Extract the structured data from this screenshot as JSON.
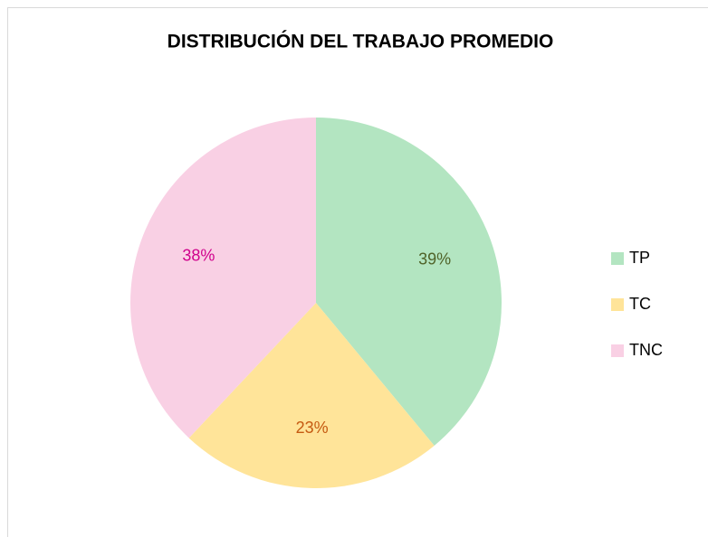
{
  "chart_data": {
    "type": "pie",
    "title": "DISTRIBUCIÓN DEL TRABAJO PROMEDIO",
    "categories": [
      "TP",
      "TC",
      "TNC"
    ],
    "values": [
      39,
      23,
      38
    ],
    "value_labels": [
      "39%",
      "23%",
      "38%"
    ],
    "colors": [
      "#b3e5c1",
      "#ffe499",
      "#f9d0e4"
    ],
    "label_colors": [
      "#4f6228",
      "#c55a11",
      "#d0008c"
    ],
    "legend": "right"
  }
}
